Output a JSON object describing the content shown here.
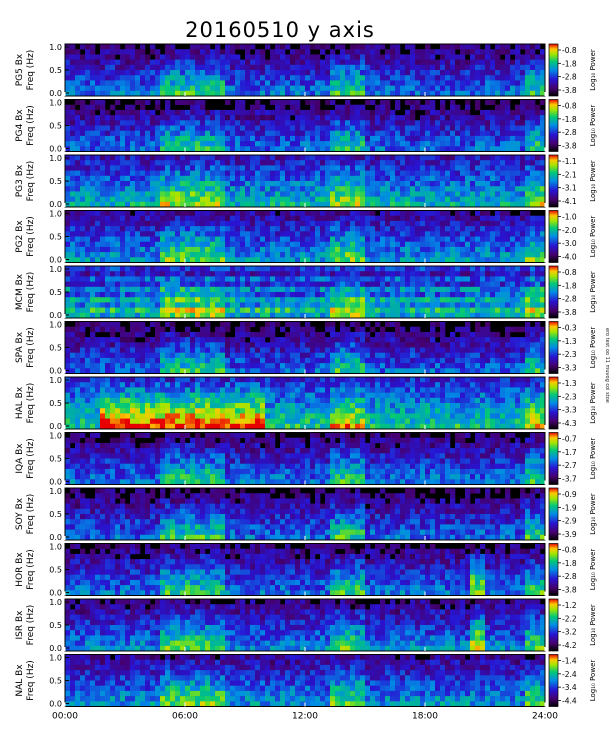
{
  "title": "20160510 y axis",
  "side_note": "ero test oo 11 muvog coi stoe",
  "chart_data": {
    "type": "heatmap",
    "title": "20160510 y axis",
    "x_ticks": [
      "00:00",
      "06:00",
      "12:00",
      "18:00",
      "24:00"
    ],
    "x_range": [
      0,
      24
    ],
    "y_ticks": [
      "1.0",
      "0.5",
      "0.0"
    ],
    "y_range": [
      0,
      1.0
    ],
    "colorbar_label": "Log₁₀ Power",
    "panels": [
      {
        "station": "PG5 Bx",
        "freq_label": "Freq (Hz)",
        "colorbar_ticks": [
          "-0.8",
          "-1.8",
          "-2.8",
          "-3.8"
        ],
        "level": 0.25
      },
      {
        "station": "PG4 Bx",
        "freq_label": "Freq (Hz)",
        "colorbar_ticks": [
          "-0.8",
          "-1.8",
          "-2.8",
          "-3.8"
        ],
        "level": 0.22
      },
      {
        "station": "PG3 Bx",
        "freq_label": "Freq (Hz)",
        "colorbar_ticks": [
          "-1.1",
          "-2.1",
          "-3.1",
          "-4.1"
        ],
        "level": 0.45
      },
      {
        "station": "PG2 Bx",
        "freq_label": "Freq (Hz)",
        "colorbar_ticks": [
          "-1.0",
          "-2.0",
          "-3.0",
          "-4.0"
        ],
        "level": 0.35
      },
      {
        "station": "MCM Bx",
        "freq_label": "Freq (Hz)",
        "colorbar_ticks": [
          "-0.8",
          "-1.8",
          "-2.8",
          "-3.8"
        ],
        "level": 0.4
      },
      {
        "station": "SPA Bx",
        "freq_label": "Freq (Hz)",
        "colorbar_ticks": [
          "-0.3",
          "-1.3",
          "-2.3",
          "-3.3"
        ],
        "level": 0.2
      },
      {
        "station": "HAL Bx",
        "freq_label": "Freq (Hz)",
        "colorbar_ticks": [
          "-1.3",
          "-2.3",
          "-3.3",
          "-4.3"
        ],
        "level": 0.55
      },
      {
        "station": "IQA Bx",
        "freq_label": "Freq (Hz)",
        "colorbar_ticks": [
          "-0.7",
          "-1.7",
          "-2.7",
          "-3.7"
        ],
        "level": 0.25
      },
      {
        "station": "SOY Bx",
        "freq_label": "Freq (Hz)",
        "colorbar_ticks": [
          "-0.9",
          "-1.9",
          "-2.9",
          "-3.9"
        ],
        "level": 0.22
      },
      {
        "station": "HOR Bx",
        "freq_label": "Freq (Hz)",
        "colorbar_ticks": [
          "-0.8",
          "-1.8",
          "-2.8",
          "-3.8"
        ],
        "level": 0.25
      },
      {
        "station": "ISR Bx",
        "freq_label": "Freq (Hz)",
        "colorbar_ticks": [
          "-1.2",
          "-2.2",
          "-3.2",
          "-4.2"
        ],
        "level": 0.3
      },
      {
        "station": "NAL Bx",
        "freq_label": "Freq (Hz)",
        "colorbar_ticks": [
          "-1.4",
          "-2.4",
          "-3.4",
          "-4.4"
        ],
        "level": 0.35
      }
    ]
  }
}
